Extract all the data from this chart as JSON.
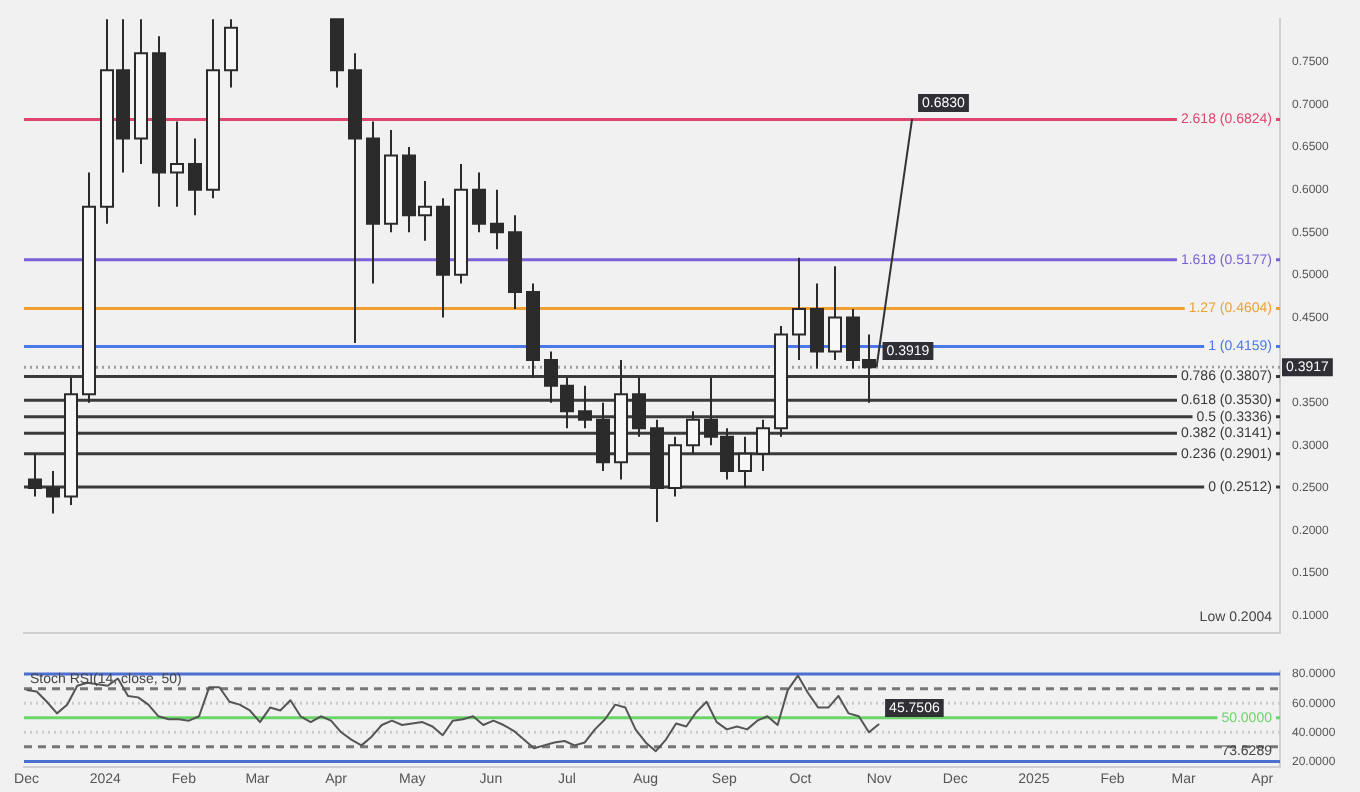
{
  "chart_data": [
    {
      "type": "candlestick",
      "color": "#2b2b2b",
      "colors": [
        "#2b2b2b",
        "#2b2b2b",
        "#f7f7f7",
        "#f7f7f7",
        "#f7f7f7",
        "#2b2b2b",
        "#f7f7f7",
        "#2b2b2b",
        "#f7f7f7",
        "#2b2b2b",
        "#f7f7f7",
        "#f7f7f7",
        "#2b2b2b",
        "#2b2b2b",
        "#2b2b2b",
        "#f7f7f7",
        "#2b2b2b",
        "#f7f7f7",
        "#2b2b2b",
        "#f7f7f7",
        "#2b2b2b",
        "#2b2b2b",
        "#2b2b2b",
        "#2b2b2b",
        "#2b2b2b",
        "#2b2b2b",
        "#2b2b2b",
        "#2b2b2b",
        "#f7f7f7",
        "#2b2b2b",
        "#2b2b2b",
        "#f7f7f7",
        "#f7f7f7",
        "#2b2b2b",
        "#2b2b2b",
        "#f7f7f7",
        "#f7f7f7",
        "#f7f7f7",
        "#f7f7f7",
        "#2b2b2b",
        "#f7f7f7",
        "#2b2b2b",
        "#2b2b2b"
      ],
      "x": [
        "2023-12-04",
        "2023-12-11",
        "2023-12-18",
        "2023-12-25",
        "2024-01-01",
        "2024-01-08",
        "2024-01-15",
        "2024-01-22",
        "2024-01-29",
        "2024-02-05",
        "2024-02-12",
        "2024-02-19",
        "2024-04-01",
        "2024-04-08",
        "2024-04-15",
        "2024-04-22",
        "2024-04-29",
        "2024-05-06",
        "2024-05-13",
        "2024-05-20",
        "2024-05-27",
        "2024-06-03",
        "2024-06-10",
        "2024-06-17",
        "2024-06-24",
        "2024-07-01",
        "2024-07-08",
        "2024-07-15",
        "2024-07-22",
        "2024-07-29",
        "2024-08-05",
        "2024-08-12",
        "2024-08-19",
        "2024-08-26",
        "2024-09-02",
        "2024-09-09",
        "2024-09-16",
        "2024-09-23",
        "2024-09-30",
        "2024-10-07",
        "2024-10-14",
        "2024-10-21",
        "2024-10-28"
      ],
      "ohlc": [
        [
          0.26,
          0.29,
          0.24,
          0.25
        ],
        [
          0.25,
          0.27,
          0.22,
          0.24
        ],
        [
          0.24,
          0.38,
          0.23,
          0.36
        ],
        [
          0.36,
          0.62,
          0.35,
          0.58
        ],
        [
          0.58,
          0.8,
          0.56,
          0.74
        ],
        [
          0.74,
          0.8,
          0.62,
          0.66
        ],
        [
          0.66,
          0.8,
          0.63,
          0.76
        ],
        [
          0.76,
          0.78,
          0.58,
          0.62
        ],
        [
          0.62,
          0.68,
          0.58,
          0.63
        ],
        [
          0.63,
          0.66,
          0.57,
          0.6
        ],
        [
          0.6,
          0.8,
          0.59,
          0.74
        ],
        [
          0.74,
          0.8,
          0.72,
          0.79
        ],
        [
          0.8,
          0.8,
          0.72,
          0.74
        ],
        [
          0.74,
          0.76,
          0.42,
          0.66
        ],
        [
          0.66,
          0.68,
          0.49,
          0.56
        ],
        [
          0.56,
          0.67,
          0.55,
          0.64
        ],
        [
          0.64,
          0.65,
          0.55,
          0.57
        ],
        [
          0.57,
          0.61,
          0.54,
          0.58
        ],
        [
          0.58,
          0.59,
          0.45,
          0.5
        ],
        [
          0.5,
          0.63,
          0.49,
          0.6
        ],
        [
          0.6,
          0.62,
          0.55,
          0.56
        ],
        [
          0.56,
          0.6,
          0.53,
          0.55
        ],
        [
          0.55,
          0.57,
          0.46,
          0.48
        ],
        [
          0.48,
          0.49,
          0.38,
          0.4
        ],
        [
          0.4,
          0.41,
          0.35,
          0.37
        ],
        [
          0.37,
          0.38,
          0.32,
          0.34
        ],
        [
          0.34,
          0.37,
          0.32,
          0.33
        ],
        [
          0.33,
          0.35,
          0.27,
          0.28
        ],
        [
          0.28,
          0.4,
          0.26,
          0.36
        ],
        [
          0.36,
          0.38,
          0.31,
          0.32
        ],
        [
          0.32,
          0.33,
          0.21,
          0.25
        ],
        [
          0.25,
          0.31,
          0.24,
          0.3
        ],
        [
          0.3,
          0.34,
          0.29,
          0.33
        ],
        [
          0.33,
          0.38,
          0.3,
          0.31
        ],
        [
          0.31,
          0.32,
          0.26,
          0.27
        ],
        [
          0.27,
          0.31,
          0.25,
          0.29
        ],
        [
          0.29,
          0.33,
          0.27,
          0.32
        ],
        [
          0.32,
          0.44,
          0.31,
          0.43
        ],
        [
          0.43,
          0.52,
          0.4,
          0.46
        ],
        [
          0.46,
          0.49,
          0.39,
          0.41
        ],
        [
          0.41,
          0.51,
          0.4,
          0.45
        ],
        [
          0.45,
          0.46,
          0.39,
          0.4
        ],
        [
          0.4,
          0.43,
          0.35,
          0.3917
        ]
      ],
      "series": [
        {
          "type": "line",
          "color": "#333333",
          "x": [
            "2024-10-31",
            "2024-11-14"
          ],
          "values": [
            0.3919,
            0.683
          ],
          "value_labels": [
            "0.3919",
            "0.6830"
          ]
        }
      ],
      "xlim": [
        "2023-11-30",
        "2025-04-08"
      ],
      "ylim": [
        0.08,
        0.8
      ],
      "yticks": [
        {
          "value": 0.1,
          "label": "0.1000"
        },
        {
          "value": 0.15,
          "label": "0.1500"
        },
        {
          "value": 0.2,
          "label": "0.2000"
        },
        {
          "value": 0.25,
          "label": "0.2500"
        },
        {
          "value": 0.3,
          "label": "0.3000"
        },
        {
          "value": 0.35,
          "label": "0.3500"
        },
        {
          "value": 0.45,
          "label": "0.4500"
        },
        {
          "value": 0.5,
          "label": "0.5000"
        },
        {
          "value": 0.55,
          "label": "0.5500"
        },
        {
          "value": 0.6,
          "label": "0.6000"
        },
        {
          "value": 0.65,
          "label": "0.6500"
        },
        {
          "value": 0.7,
          "label": "0.7000"
        },
        {
          "value": 0.75,
          "label": "0.7500"
        }
      ],
      "tick_labels": "y",
      "ref_lines": [
        {
          "axis": "y",
          "value": 0.6824,
          "label": "2.618 (0.6824)",
          "color": "#e0456f"
        },
        {
          "axis": "y",
          "value": 0.5177,
          "label": "1.618 (0.5177)",
          "color": "#7b61d8"
        },
        {
          "axis": "y",
          "value": 0.4604,
          "label": "1.27 (0.4604)",
          "color": "#f0a030"
        },
        {
          "axis": "y",
          "value": 0.4159,
          "label": "1 (0.4159)",
          "color": "#4a78e8"
        },
        {
          "axis": "y",
          "value": 0.3807,
          "label": "0.786 (0.3807)",
          "color": "#3a3a3a"
        },
        {
          "axis": "y",
          "value": 0.353,
          "label": "0.618 (0.3530)",
          "color": "#3a3a3a"
        },
        {
          "axis": "y",
          "value": 0.3336,
          "label": "0.5 (0.3336)",
          "color": "#3a3a3a"
        },
        {
          "axis": "y",
          "value": 0.3141,
          "label": "0.382 (0.3141)",
          "color": "#3a3a3a"
        },
        {
          "axis": "y",
          "value": 0.2901,
          "label": "0.236 (0.2901)",
          "color": "#3a3a3a"
        },
        {
          "axis": "y",
          "value": 0.2512,
          "label": "0 (0.2512)",
          "color": "#3a3a3a"
        },
        {
          "axis": "y",
          "value": 0.3917,
          "label": "0.3917",
          "color": "#9e9e9e",
          "line_style": "dotted"
        }
      ],
      "annotations": [
        "Low 0.2004"
      ]
    },
    {
      "type": "line",
      "title": "Stoch RSI(14, close, 50)",
      "x": [
        "2023-12-01",
        "2023-12-05",
        "2023-12-09",
        "2023-12-13",
        "2023-12-17",
        "2023-12-21",
        "2023-12-25",
        "2023-12-29",
        "2024-01-02",
        "2024-01-06",
        "2024-01-10",
        "2024-01-14",
        "2024-01-18",
        "2024-01-22",
        "2024-01-26",
        "2024-01-30",
        "2024-02-03",
        "2024-02-07",
        "2024-02-11",
        "2024-02-15",
        "2024-02-19",
        "2024-02-23",
        "2024-02-27",
        "2024-03-02",
        "2024-03-06",
        "2024-03-10",
        "2024-03-14",
        "2024-03-18",
        "2024-03-22",
        "2024-03-26",
        "2024-03-30",
        "2024-04-03",
        "2024-04-07",
        "2024-04-11",
        "2024-04-15",
        "2024-04-19",
        "2024-04-23",
        "2024-04-27",
        "2024-05-01",
        "2024-05-05",
        "2024-05-09",
        "2024-05-13",
        "2024-05-17",
        "2024-05-21",
        "2024-05-25",
        "2024-05-29",
        "2024-06-02",
        "2024-06-06",
        "2024-06-10",
        "2024-06-14",
        "2024-06-18",
        "2024-06-22",
        "2024-06-26",
        "2024-06-30",
        "2024-07-04",
        "2024-07-08",
        "2024-07-12",
        "2024-07-16",
        "2024-07-20",
        "2024-07-24",
        "2024-07-28",
        "2024-08-01",
        "2024-08-05",
        "2024-08-09",
        "2024-08-13",
        "2024-08-17",
        "2024-08-21",
        "2024-08-25",
        "2024-08-29",
        "2024-09-02",
        "2024-09-06",
        "2024-09-10",
        "2024-09-14",
        "2024-09-18",
        "2024-09-22",
        "2024-09-26",
        "2024-09-30",
        "2024-10-04",
        "2024-10-08",
        "2024-10-12",
        "2024-10-16",
        "2024-10-20",
        "2024-10-24",
        "2024-10-28",
        "2024-11-01"
      ],
      "series": [
        {
          "color": "#555555",
          "values": [
            69,
            68,
            61,
            53,
            59,
            72,
            74,
            73,
            72,
            77,
            65,
            64,
            59,
            51,
            49,
            49,
            48,
            51,
            71,
            71,
            61,
            59,
            55,
            47,
            57,
            55,
            62,
            51,
            47,
            51,
            48,
            40,
            35,
            31,
            37,
            45,
            48,
            45,
            46,
            47,
            44,
            38,
            48,
            49,
            51,
            45,
            48,
            45,
            41,
            35,
            29,
            31,
            33,
            34,
            31,
            33,
            42,
            49,
            59,
            57,
            42,
            33,
            27,
            35,
            46,
            44,
            54,
            61,
            47,
            42,
            44,
            42,
            48,
            51,
            45,
            69,
            79,
            67,
            57,
            57,
            65,
            53,
            51,
            40,
            45.7506
          ],
          "value_labels": [
            null,
            null,
            null,
            null,
            null,
            null,
            null,
            null,
            null,
            null,
            null,
            null,
            null,
            null,
            null,
            null,
            null,
            null,
            null,
            null,
            null,
            null,
            null,
            null,
            null,
            null,
            null,
            null,
            null,
            null,
            null,
            null,
            null,
            null,
            null,
            null,
            null,
            null,
            null,
            null,
            null,
            null,
            null,
            null,
            null,
            null,
            null,
            null,
            null,
            null,
            null,
            null,
            null,
            null,
            null,
            null,
            null,
            null,
            null,
            null,
            null,
            null,
            null,
            null,
            null,
            null,
            null,
            null,
            null,
            null,
            null,
            null,
            null,
            null,
            null,
            null,
            null,
            null,
            null,
            null,
            null,
            null,
            null,
            null,
            "45.7506"
          ]
        }
      ],
      "xlim": [
        "2023-11-30",
        "2025-04-08"
      ],
      "xticks": [
        {
          "value": "2023-12-01",
          "label": "Dec"
        },
        {
          "value": "2024-01-01",
          "label": "2024"
        },
        {
          "value": "2024-02-01",
          "label": "Feb"
        },
        {
          "value": "2024-03-01",
          "label": "Mar"
        },
        {
          "value": "2024-04-01",
          "label": "Apr"
        },
        {
          "value": "2024-05-01",
          "label": "May"
        },
        {
          "value": "2024-06-01",
          "label": "Jun"
        },
        {
          "value": "2024-07-01",
          "label": "Jul"
        },
        {
          "value": "2024-08-01",
          "label": "Aug"
        },
        {
          "value": "2024-09-01",
          "label": "Sep"
        },
        {
          "value": "2024-10-01",
          "label": "Oct"
        },
        {
          "value": "2024-11-01",
          "label": "Nov"
        },
        {
          "value": "2024-12-01",
          "label": "Dec"
        },
        {
          "value": "2025-01-01",
          "label": "2025"
        },
        {
          "value": "2025-02-01",
          "label": "Feb"
        },
        {
          "value": "2025-03-01",
          "label": "Mar"
        },
        {
          "value": "2025-04-01",
          "label": "Apr"
        }
      ],
      "ylim": [
        16,
        82
      ],
      "yticks": [
        {
          "value": 20,
          "label": "20.0000"
        },
        {
          "value": 40,
          "label": "40.0000"
        },
        {
          "value": 60,
          "label": "60.0000"
        },
        {
          "value": 80,
          "label": "80.0000"
        }
      ],
      "ref_lines": [
        {
          "axis": "y",
          "value": 80,
          "color": "#4a6fd0"
        },
        {
          "axis": "y",
          "value": 70,
          "color": "#777777",
          "line_style": "dashed"
        },
        {
          "axis": "y",
          "value": 60,
          "color": "#cccccc",
          "line_style": "dotted"
        },
        {
          "axis": "y",
          "value": 50,
          "color": "#6ad66a",
          "label": "50.0000"
        },
        {
          "axis": "y",
          "value": 40,
          "color": "#cccccc",
          "line_style": "dotted"
        },
        {
          "axis": "y",
          "value": 30,
          "color": "#777777",
          "line_style": "dashed"
        },
        {
          "axis": "y",
          "value": 20,
          "color": "#4a6fd0"
        }
      ],
      "annotations": [
        "73.6289"
      ]
    }
  ]
}
